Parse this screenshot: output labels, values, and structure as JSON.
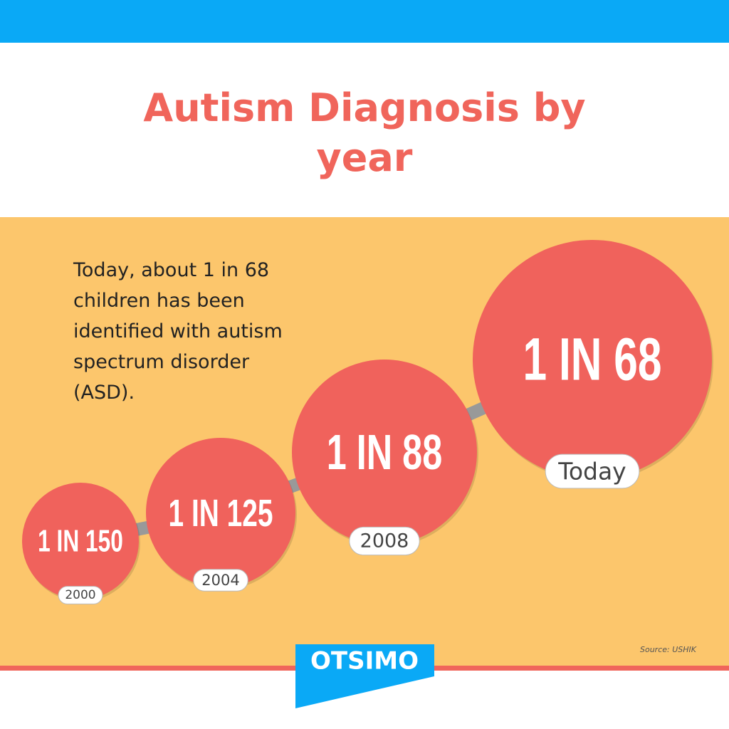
{
  "header": {
    "title": "Autism Diagnosis by year"
  },
  "intro": "Today, about 1 in 68 children has been identified with autism spectrum disorder (ASD).",
  "items": [
    {
      "label": "1 IN 150",
      "year": "2000"
    },
    {
      "label": "1 IN 125",
      "year": "2004"
    },
    {
      "label": "1 IN 88",
      "year": "2008"
    },
    {
      "label": "1 IN 68",
      "year": "Today"
    }
  ],
  "source": "Source: USHIK",
  "brand": "OTSIMO"
}
